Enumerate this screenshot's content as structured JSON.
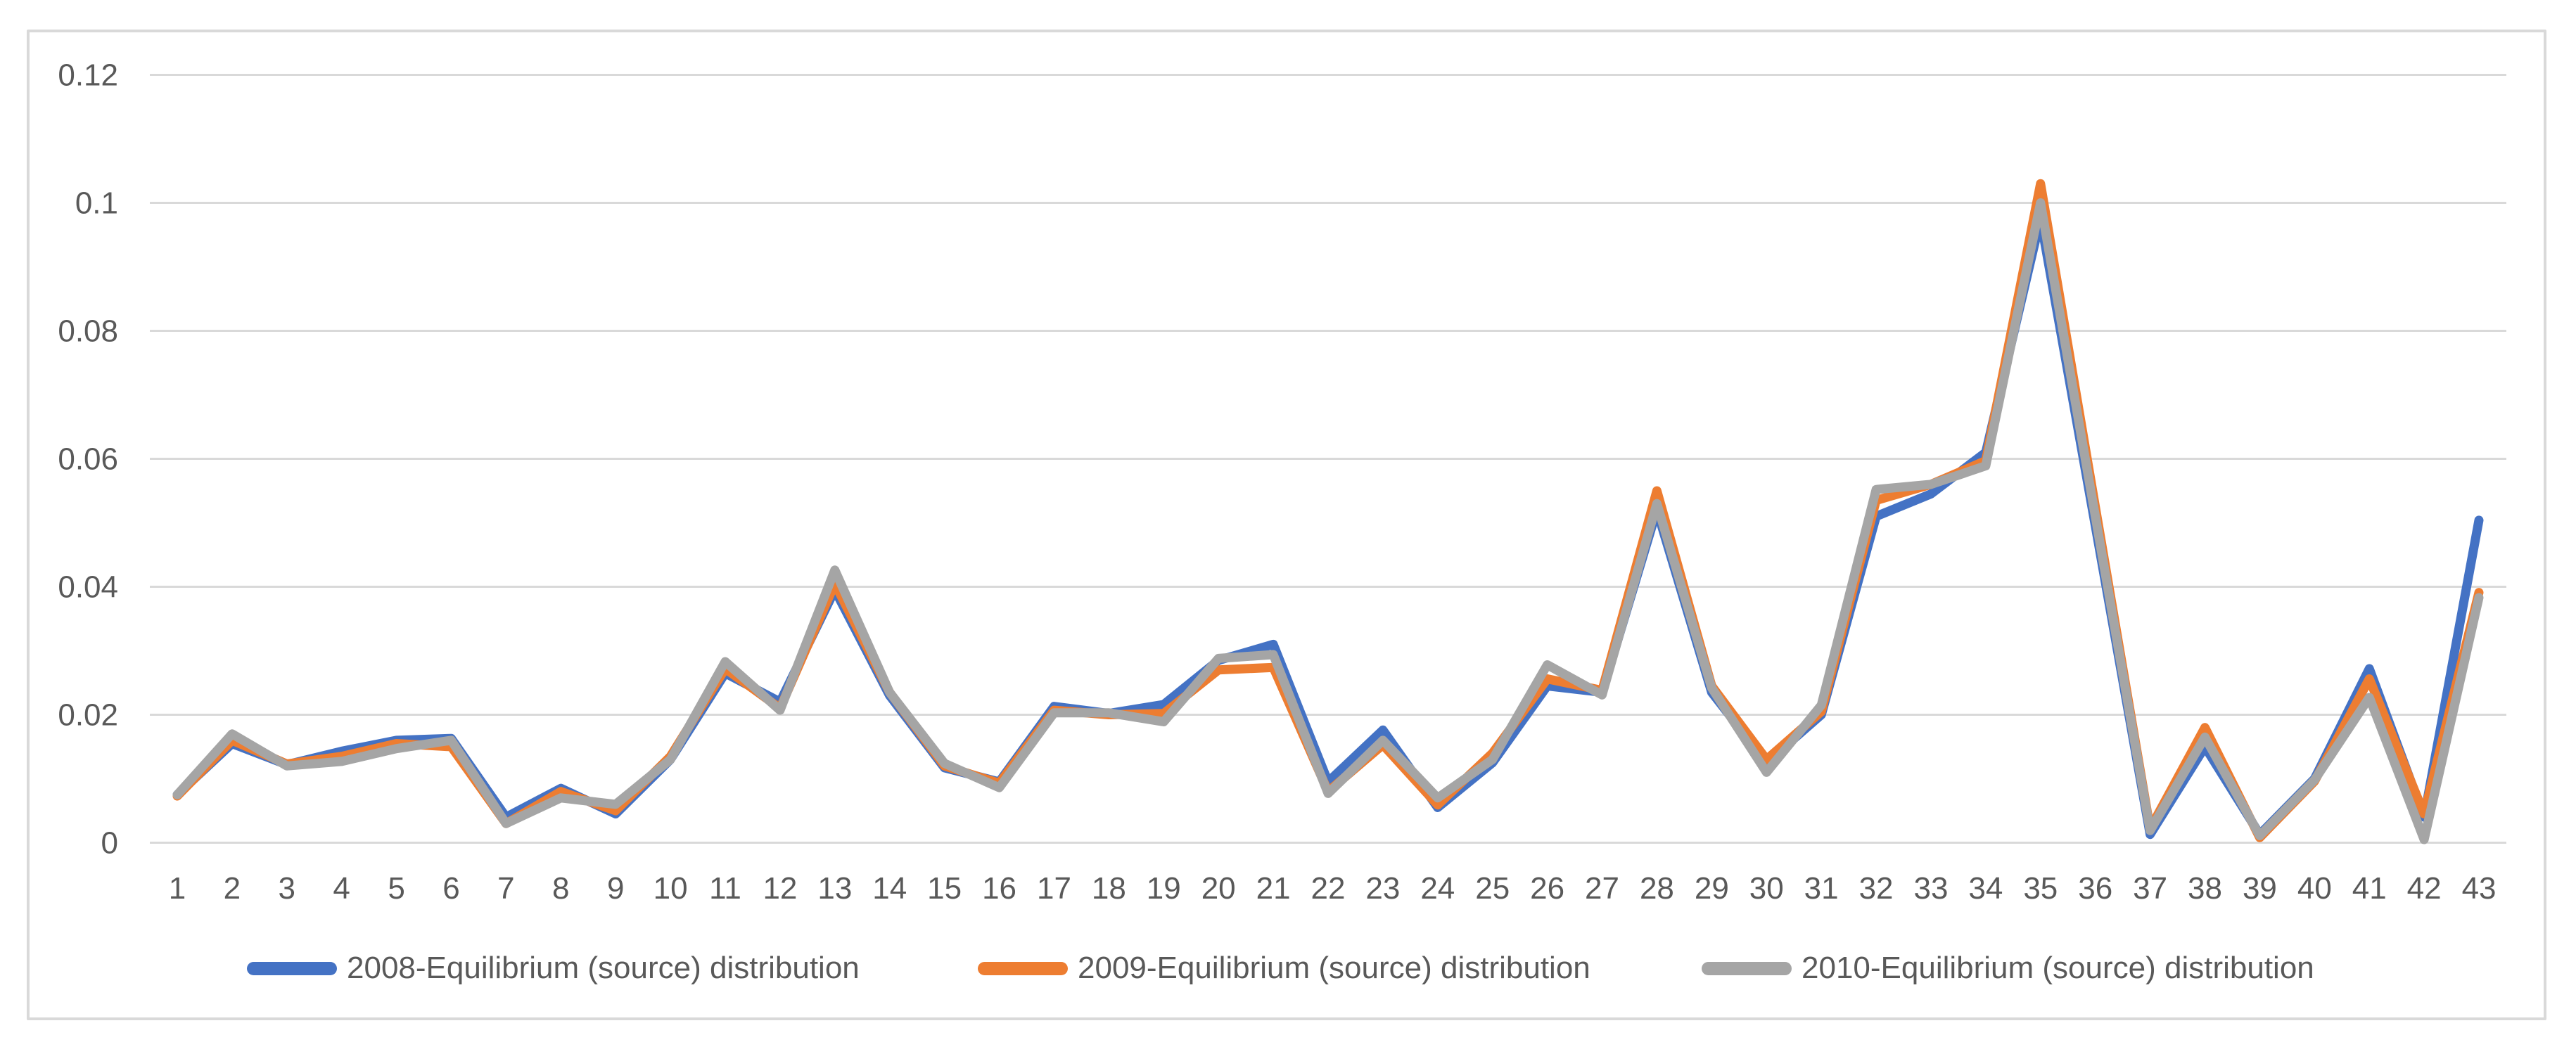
{
  "chart_data": {
    "type": "line",
    "title": "",
    "xlabel": "",
    "ylabel": "",
    "grid": true,
    "legend_position": "bottom",
    "categories": [
      "1",
      "2",
      "3",
      "4",
      "5",
      "6",
      "7",
      "8",
      "9",
      "10",
      "11",
      "12",
      "13",
      "14",
      "15",
      "16",
      "17",
      "18",
      "19",
      "20",
      "21",
      "22",
      "23",
      "24",
      "25",
      "26",
      "27",
      "28",
      "29",
      "30",
      "31",
      "32",
      "33",
      "34",
      "35",
      "36",
      "37",
      "38",
      "39",
      "40",
      "41",
      "42",
      "43"
    ],
    "series": [
      {
        "name": "2008-Equilibrium (source) distribution",
        "color": "#4472C4",
        "values": [
          0.0075,
          0.0155,
          0.0122,
          0.0143,
          0.016,
          0.0163,
          0.004,
          0.0085,
          0.0045,
          0.013,
          0.0265,
          0.022,
          0.0395,
          0.023,
          0.0117,
          0.0095,
          0.0213,
          0.0202,
          0.0216,
          0.0285,
          0.031,
          0.0095,
          0.0176,
          0.0055,
          0.0125,
          0.0245,
          0.0235,
          0.052,
          0.0235,
          0.0125,
          0.02,
          0.051,
          0.0545,
          0.061,
          0.0975,
          0.0495,
          0.0013,
          0.015,
          0.0013,
          0.01,
          0.0272,
          0.004,
          0.0504
        ]
      },
      {
        "name": "2009-Equilibrium (source) distribution",
        "color": "#ED7D31",
        "values": [
          0.0073,
          0.016,
          0.0123,
          0.0135,
          0.0155,
          0.015,
          0.003,
          0.008,
          0.005,
          0.0135,
          0.0272,
          0.021,
          0.0405,
          0.0235,
          0.012,
          0.0093,
          0.0207,
          0.02,
          0.0202,
          0.027,
          0.0274,
          0.008,
          0.0153,
          0.0059,
          0.014,
          0.0256,
          0.0238,
          0.055,
          0.0245,
          0.013,
          0.0205,
          0.0535,
          0.056,
          0.0597,
          0.103,
          0.0525,
          0.0022,
          0.018,
          0.0008,
          0.0096,
          0.0256,
          0.0045,
          0.0391
        ]
      },
      {
        "name": "2010-Equilibrium (source) distribution",
        "color": "#A5A5A5",
        "values": [
          0.0075,
          0.017,
          0.012,
          0.0127,
          0.0147,
          0.016,
          0.003,
          0.007,
          0.006,
          0.013,
          0.0283,
          0.0207,
          0.0426,
          0.0235,
          0.0124,
          0.0086,
          0.0203,
          0.0203,
          0.0189,
          0.0288,
          0.0294,
          0.0077,
          0.016,
          0.007,
          0.013,
          0.0278,
          0.0231,
          0.053,
          0.0242,
          0.011,
          0.0215,
          0.0552,
          0.056,
          0.0589,
          0.1,
          0.051,
          0.0019,
          0.0165,
          0.0011,
          0.0098,
          0.0227,
          0.0005,
          0.0383
        ]
      }
    ],
    "y_axis": {
      "range": [
        0,
        0.12
      ],
      "ticks": [
        {
          "label": "0",
          "value": 0
        },
        {
          "label": "0.02",
          "value": 0.02
        },
        {
          "label": "0.04",
          "value": 0.04
        },
        {
          "label": "0.06",
          "value": 0.06
        },
        {
          "label": "0.08",
          "value": 0.08
        },
        {
          "label": "0.1",
          "value": 0.1
        },
        {
          "label": "0.12",
          "value": 0.12
        }
      ]
    },
    "theme": {
      "grid_color": "#D9D9D9",
      "axis_text_color": "#595959",
      "frame_border_color": "#D9D9D9",
      "background": "#FFFFFF"
    }
  }
}
